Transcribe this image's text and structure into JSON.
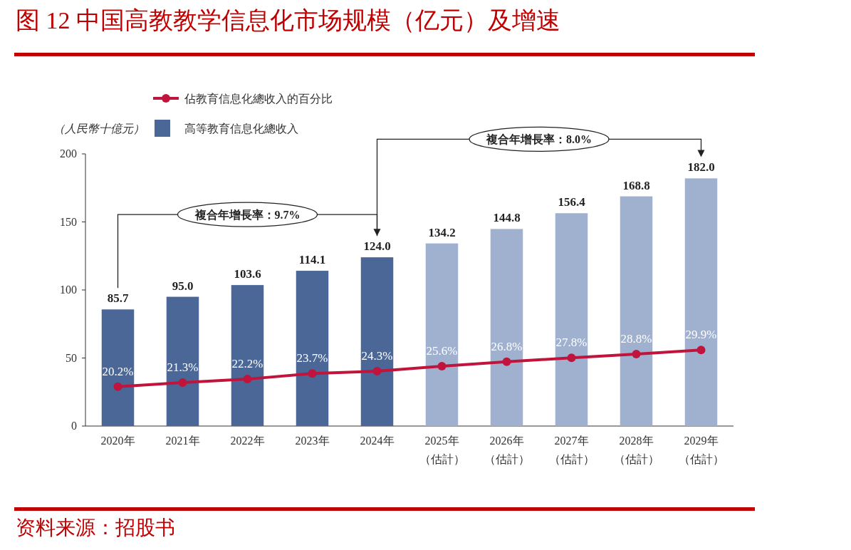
{
  "chart_data": {
    "type": "bar",
    "title": "图 12  中国高教教学信息化市场规模（亿元）及增速",
    "ylabel": "（人民幣十億元）",
    "categories": [
      "2020年",
      "2021年",
      "2022年",
      "2023年",
      "2024年",
      "2025年（估計）",
      "2026年（估計）",
      "2027年（估計）",
      "2028年（估計）",
      "2029年（估計）"
    ],
    "series": [
      {
        "name": "高等教育信息化總收入",
        "colors": [
          "#4a6797",
          "#4a6797",
          "#4a6797",
          "#4a6797",
          "#4a6797",
          "#a0b1d0",
          "#a0b1d0",
          "#a0b1d0",
          "#a0b1d0",
          "#a0b1d0"
        ],
        "color": "#4a6797",
        "values": [
          85.7,
          95.0,
          103.6,
          114.1,
          124.0,
          134.2,
          144.8,
          156.4,
          168.8,
          182.0
        ],
        "value_labels": [
          "85.7",
          "95.0",
          "103.6",
          "114.1",
          "124.0",
          "134.2",
          "144.8",
          "156.4",
          "168.8",
          "182.0"
        ]
      },
      {
        "name": "佔教育信息化總收入的百分比",
        "type": "line",
        "color": "#c0143c",
        "marker": "circle",
        "axis": "y2",
        "values": [
          20.2,
          21.3,
          22.2,
          23.7,
          24.3,
          25.6,
          26.8,
          27.8,
          28.8,
          29.9
        ],
        "value_labels": [
          "20.2%",
          "21.3%",
          "22.2%",
          "23.7%",
          "24.3%",
          "25.6%",
          "26.8%",
          "27.8%",
          "28.8%",
          "29.9%"
        ]
      }
    ],
    "ylim": [
      0,
      200
    ],
    "y2lim": [
      9.8,
      81.7
    ],
    "tick_labels": "y",
    "yticks": [
      0,
      50,
      100,
      150,
      200
    ],
    "grid": false,
    "legend": "top left",
    "annotations": [
      "资料来源：招股书",
      "複合年增長率：9.7%",
      "複合年增長率：8.0%"
    ]
  }
}
